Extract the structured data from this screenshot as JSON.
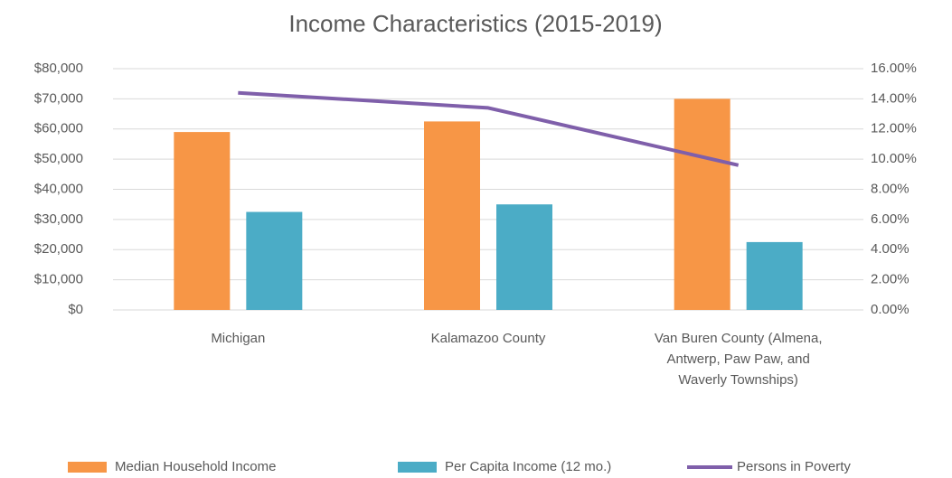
{
  "chart_data": {
    "type": "bar-line",
    "title": "Income Characteristics (2015-2019)",
    "categories": [
      "Michigan",
      "Kalamazoo County",
      "Van Buren County (Almena, Antwerp, Paw Paw, and Waverly Townships)"
    ],
    "series": [
      {
        "name": "Median Household Income",
        "color": "#f79646",
        "type": "bar",
        "values": [
          59000,
          62500,
          70000
        ]
      },
      {
        "name": "Per Capita Income (12 mo.)",
        "color": "#4bacc6",
        "type": "bar",
        "values": [
          32500,
          35000,
          22500
        ]
      },
      {
        "name": "Persons in Poverty",
        "color": "#7f5faa",
        "type": "line",
        "axis": "y2",
        "values": [
          14.4,
          13.4,
          9.6
        ]
      }
    ],
    "ylim": [
      0,
      80000
    ],
    "yticks": [
      {
        "value": 0,
        "label": "$0"
      },
      {
        "value": 10000,
        "label": "$10,000"
      },
      {
        "value": 20000,
        "label": "$20,000"
      },
      {
        "value": 30000,
        "label": "$30,000"
      },
      {
        "value": 40000,
        "label": "$40,000"
      },
      {
        "value": 50000,
        "label": "$50,000"
      },
      {
        "value": 60000,
        "label": "$60,000"
      },
      {
        "value": 70000,
        "label": "$70,000"
      },
      {
        "value": 80000,
        "label": "$80,000"
      }
    ],
    "y2lim": [
      0,
      16
    ],
    "y2ticks": [
      {
        "value": 0,
        "label": "0.00%"
      },
      {
        "value": 2,
        "label": "2.00%"
      },
      {
        "value": 4,
        "label": "4.00%"
      },
      {
        "value": 6,
        "label": "6.00%"
      },
      {
        "value": 8,
        "label": "8.00%"
      },
      {
        "value": 10,
        "label": "10.00%"
      },
      {
        "value": 12,
        "label": "12.00%"
      },
      {
        "value": 14,
        "label": "14.00%"
      },
      {
        "value": 16,
        "label": "16.00%"
      }
    ],
    "grid": true,
    "legend": "bottom"
  }
}
